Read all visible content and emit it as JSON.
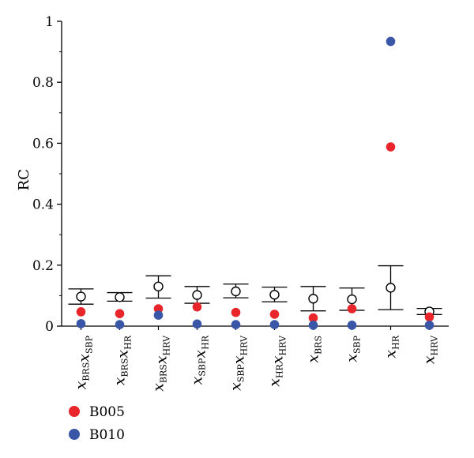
{
  "chart_data": {
    "type": "scatter",
    "title": "",
    "xlabel": "",
    "ylabel": "RC",
    "ylim": [
      0,
      1
    ],
    "yticks": [
      "0",
      "0.2",
      "0.4",
      "0.6",
      "0.8",
      "1"
    ],
    "grid": false,
    "legend_position": "bottom-left",
    "categories": [
      [
        {
          "v": "x"
        },
        {
          "s": "BRS"
        },
        {
          "v": "x"
        },
        {
          "s": "SBP"
        }
      ],
      [
        {
          "v": "x"
        },
        {
          "s": "BRS"
        },
        {
          "v": "x"
        },
        {
          "s": "HR"
        }
      ],
      [
        {
          "v": "x"
        },
        {
          "s": "BRS"
        },
        {
          "v": "x"
        },
        {
          "s": "HRV"
        }
      ],
      [
        {
          "v": "x"
        },
        {
          "s": "SBP"
        },
        {
          "v": "x"
        },
        {
          "s": "HR"
        }
      ],
      [
        {
          "v": "x"
        },
        {
          "s": "SBP"
        },
        {
          "v": "x"
        },
        {
          "s": "HRV"
        }
      ],
      [
        {
          "v": "x"
        },
        {
          "s": "HR"
        },
        {
          "v": "x"
        },
        {
          "s": "HRV"
        }
      ],
      [
        {
          "v": "x"
        },
        {
          "s": "BRS"
        }
      ],
      [
        {
          "v": "x"
        },
        {
          "s": "SBP"
        }
      ],
      [
        {
          "v": "x"
        },
        {
          "s": "HR"
        }
      ],
      [
        {
          "v": "x"
        },
        {
          "s": "HRV"
        }
      ]
    ],
    "reference": {
      "mean": [
        0.097,
        0.095,
        0.13,
        0.102,
        0.114,
        0.103,
        0.09,
        0.088,
        0.126,
        0.048
      ],
      "upper": [
        0.122,
        0.11,
        0.165,
        0.13,
        0.138,
        0.128,
        0.13,
        0.125,
        0.198,
        0.058
      ],
      "lower": [
        0.072,
        0.082,
        0.092,
        0.075,
        0.093,
        0.08,
        0.05,
        0.052,
        0.054,
        0.038
      ],
      "color": "#000000"
    },
    "series": [
      {
        "name": "B005",
        "color": "#e8252a",
        "values": [
          0.047,
          0.041,
          0.057,
          0.063,
          0.045,
          0.039,
          0.027,
          0.057,
          0.588,
          0.03
        ]
      },
      {
        "name": "B010",
        "color": "#3a56a6",
        "values": [
          0.008,
          0.005,
          0.036,
          0.007,
          0.005,
          0.005,
          0.003,
          0.003,
          0.934,
          0.003
        ]
      }
    ]
  }
}
